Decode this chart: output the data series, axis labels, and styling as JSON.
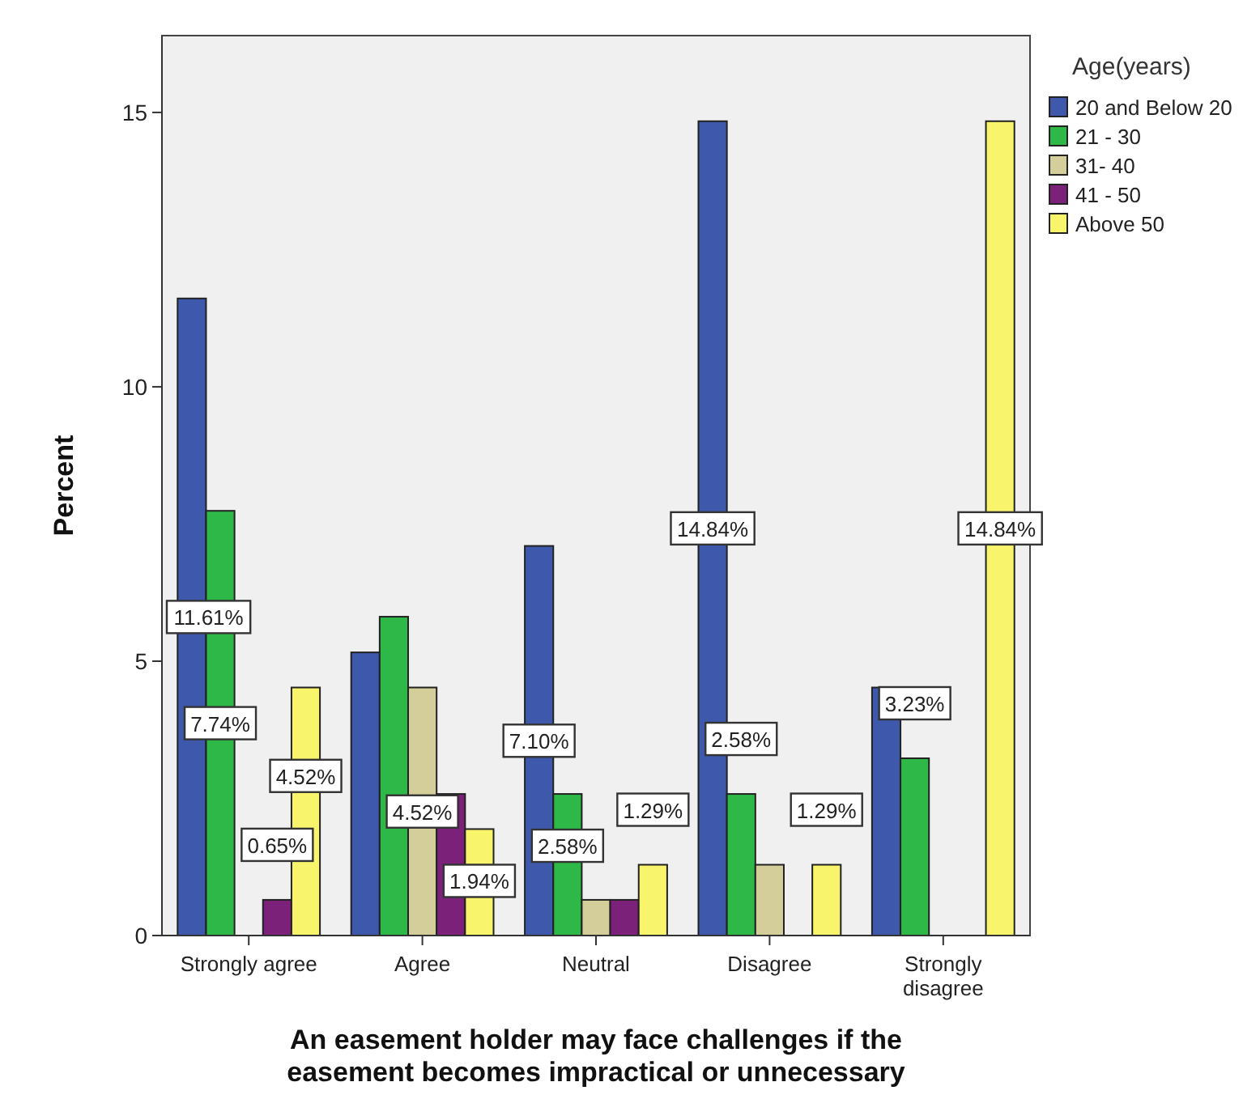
{
  "chart_data": {
    "type": "bar",
    "xlabel": "An easement holder may face challenges if the easement becomes impractical or unnecessary",
    "ylabel": "Percent",
    "legend_title": "Age(years)",
    "legend": "top right",
    "categories": [
      "Strongly agree",
      "Agree",
      "Neutral",
      "Disagree",
      "Strongly disagree"
    ],
    "ylim": [
      0,
      16.4
    ],
    "yticks": [
      0,
      5,
      10,
      15
    ],
    "series": [
      {
        "name": "20 and Below 20",
        "color": "#3e58ac",
        "values": [
          11.61,
          5.16,
          7.1,
          14.84,
          4.52
        ],
        "value_labels": [
          "11.61%",
          null,
          "7.10%",
          "14.84%",
          null
        ]
      },
      {
        "name": "21 - 30",
        "color": "#2eb848",
        "values": [
          7.74,
          5.81,
          2.58,
          2.58,
          3.23
        ],
        "value_labels": [
          "7.74%",
          null,
          "2.58%",
          "2.58%",
          "3.23%"
        ]
      },
      {
        "name": "31- 40",
        "color": "#d4cf9a",
        "values": [
          0,
          4.52,
          0.65,
          1.29,
          0
        ],
        "value_labels": [
          null,
          "4.52%",
          null,
          null,
          null
        ]
      },
      {
        "name": "41 - 50",
        "color": "#7b2179",
        "values": [
          0.65,
          2.58,
          0.65,
          0,
          0
        ],
        "value_labels": [
          "0.65%",
          null,
          null,
          null,
          null
        ]
      },
      {
        "name": "Above 50",
        "color": "#f8f56c",
        "values": [
          4.52,
          1.94,
          1.29,
          1.29,
          14.84
        ],
        "value_labels": [
          "4.52%",
          "1.94%",
          "1.29%",
          "1.29%",
          "14.84%"
        ]
      }
    ]
  }
}
